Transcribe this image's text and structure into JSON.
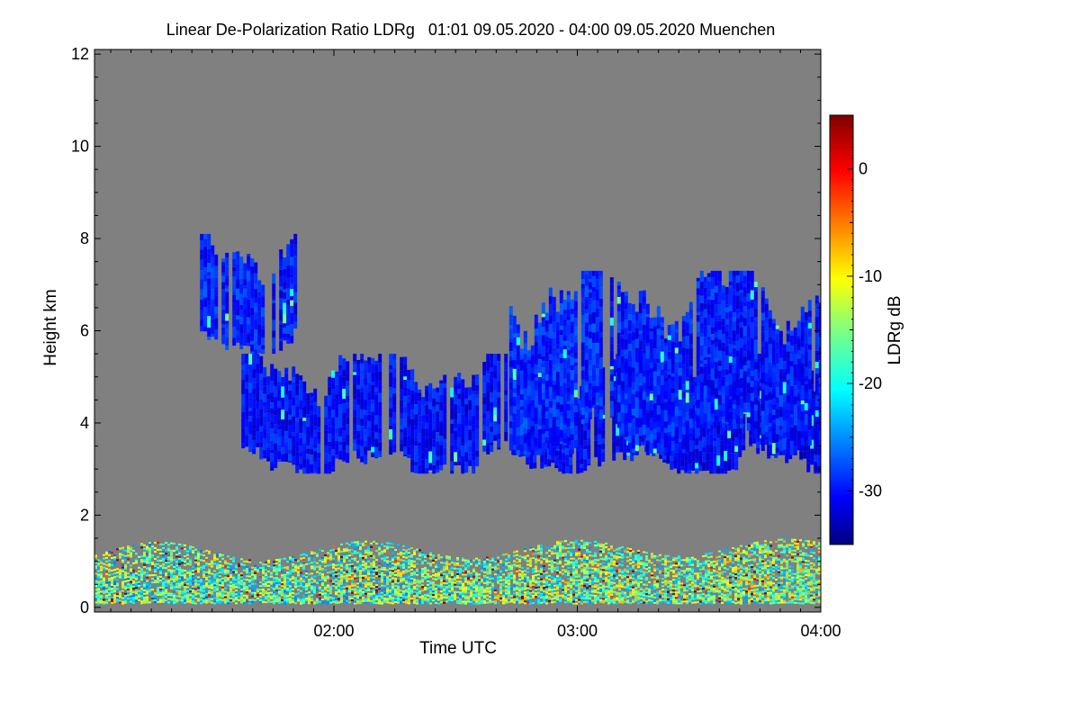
{
  "chart_data": {
    "type": "heatmap",
    "title": "Linear De-Polarization Ratio LDRg   01:01 09.05.2020 - 04:00 09.05.2020 Muenchen",
    "xlabel": "Time UTC",
    "ylabel": "Height km",
    "x_range_hours": [
      1.0167,
      4.0
    ],
    "xticks": [
      {
        "value": 2.0,
        "label": "02:00"
      },
      {
        "value": 3.0,
        "label": "03:00"
      },
      {
        "value": 4.0,
        "label": "04:00"
      }
    ],
    "ylim": [
      -0.1,
      12.1
    ],
    "yticks": [
      {
        "value": 0,
        "label": "0"
      },
      {
        "value": 2,
        "label": "2"
      },
      {
        "value": 4,
        "label": "4"
      },
      {
        "value": 6,
        "label": "6"
      },
      {
        "value": 8,
        "label": "8"
      },
      {
        "value": 10,
        "label": "10"
      },
      {
        "value": 12,
        "label": "12"
      }
    ],
    "background_color": "#808080",
    "colorbar": {
      "label": "LDRg dB",
      "range": [
        -35,
        5
      ],
      "ticks": [
        {
          "value": 0,
          "label": "0"
        },
        {
          "value": -10,
          "label": "-10"
        },
        {
          "value": -20,
          "label": "-20"
        },
        {
          "value": -30,
          "label": "-30"
        }
      ],
      "colormap": "jet"
    },
    "features": [
      {
        "name": "cloud-layer-main",
        "time_start": 1.62,
        "time_end": 4.0,
        "height_bottom": 2.9,
        "height_top": 5.5,
        "ldr_db": -30
      },
      {
        "name": "cloud-tops-right",
        "time_start": 2.72,
        "time_end": 4.0,
        "height_bottom": 3.3,
        "height_top": 7.3,
        "ldr_db": -29
      },
      {
        "name": "cloud-patch-upper-left",
        "time_start": 1.45,
        "time_end": 1.85,
        "height_bottom": 5.5,
        "height_top": 8.1,
        "ldr_db": -29
      },
      {
        "name": "boundary-layer-aerosol",
        "time_start": 1.0167,
        "time_end": 4.0,
        "height_bottom": 0.1,
        "height_top": 1.8,
        "ldr_db": -15
      }
    ]
  }
}
